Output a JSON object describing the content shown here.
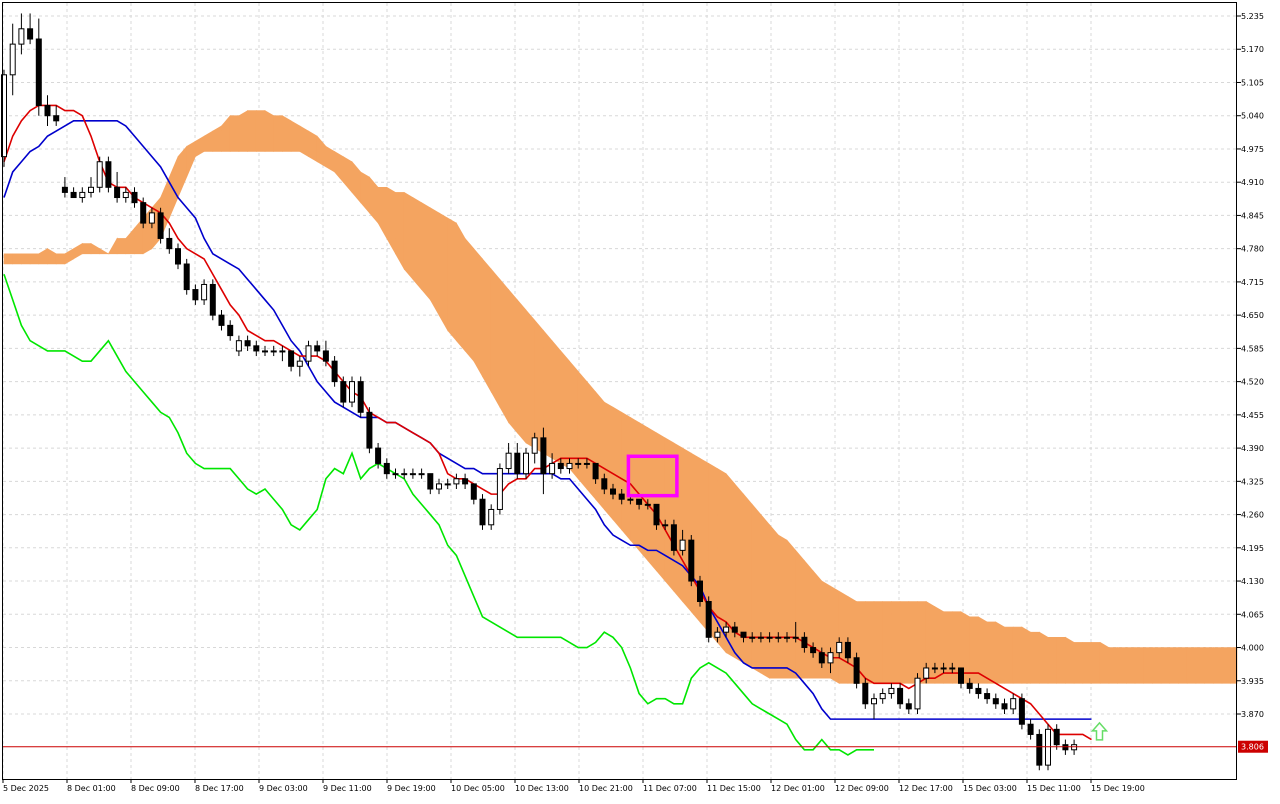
{
  "window": {
    "symbol_hidden": ""
  },
  "chart_data": {
    "type": "candlestick",
    "title": "",
    "ylim": [
      3.75,
      5.255
    ],
    "grid": true,
    "y_ticks": [
      "5.235",
      "5.170",
      "5.105",
      "5.040",
      "4.975",
      "4.910",
      "4.845",
      "4.780",
      "4.715",
      "4.650",
      "4.585",
      "4.520",
      "4.455",
      "4.390",
      "4.325",
      "4.260",
      "4.195",
      "4.130",
      "4.065",
      "4.000",
      "3.935",
      "3.870"
    ],
    "x_ticks": [
      "5 Dec 2025",
      "8 Dec 01:00",
      "8 Dec 09:00",
      "8 Dec 17:00",
      "9 Dec 03:00",
      "9 Dec 11:00",
      "9 Dec 19:00",
      "10 Dec 05:00",
      "10 Dec 13:00",
      "10 Dec 21:00",
      "11 Dec 07:00",
      "11 Dec 15:00",
      "12 Dec 01:00",
      "12 Dec 09:00",
      "12 Dec 17:00",
      "15 Dec 03:00",
      "15 Dec 11:00",
      "15 Dec 19:00"
    ],
    "current_price": "3.806",
    "colors": {
      "tenkan": "#dd0000",
      "kijun": "#0000cc",
      "chikou": "#00e600",
      "cloud_bull": "#f4a460",
      "cloud_bear": "#d8bfd8",
      "price_line": "#cc0000",
      "highlight": "#ff00ff",
      "arrow": "#66dd66",
      "candle": "#000000"
    },
    "candles": [
      [
        4.96,
        5.13,
        4.94,
        5.12
      ],
      [
        5.12,
        5.22,
        5.08,
        5.18
      ],
      [
        5.18,
        5.24,
        5.16,
        5.21
      ],
      [
        5.21,
        5.24,
        5.18,
        5.19
      ],
      [
        5.19,
        5.23,
        5.04,
        5.06
      ],
      [
        5.06,
        5.08,
        5.02,
        5.04
      ],
      [
        5.04,
        5.06,
        5.02,
        5.03
      ],
      [
        4.9,
        4.92,
        4.88,
        4.89
      ],
      [
        4.89,
        4.9,
        4.88,
        4.88
      ],
      [
        4.88,
        4.9,
        4.87,
        4.89
      ],
      [
        4.89,
        4.92,
        4.88,
        4.9
      ],
      [
        4.9,
        4.96,
        4.89,
        4.95
      ],
      [
        4.95,
        4.96,
        4.89,
        4.9
      ],
      [
        4.9,
        4.93,
        4.87,
        4.88
      ],
      [
        4.88,
        4.9,
        4.87,
        4.89
      ],
      [
        4.89,
        4.9,
        4.86,
        4.87
      ],
      [
        4.87,
        4.88,
        4.82,
        4.83
      ],
      [
        4.83,
        4.86,
        4.82,
        4.85
      ],
      [
        4.85,
        4.86,
        4.79,
        4.8
      ],
      [
        4.8,
        4.82,
        4.77,
        4.78
      ],
      [
        4.78,
        4.79,
        4.74,
        4.75
      ],
      [
        4.75,
        4.76,
        4.69,
        4.7
      ],
      [
        4.7,
        4.71,
        4.67,
        4.68
      ],
      [
        4.68,
        4.72,
        4.67,
        4.71
      ],
      [
        4.71,
        4.72,
        4.64,
        4.65
      ],
      [
        4.65,
        4.66,
        4.62,
        4.63
      ],
      [
        4.63,
        4.64,
        4.6,
        4.61
      ],
      [
        4.58,
        4.61,
        4.57,
        4.6
      ],
      [
        4.6,
        4.61,
        4.58,
        4.59
      ],
      [
        4.59,
        4.6,
        4.57,
        4.58
      ],
      [
        4.58,
        4.59,
        4.57,
        4.58
      ],
      [
        4.58,
        4.59,
        4.57,
        4.58
      ],
      [
        4.58,
        4.59,
        4.56,
        4.58
      ],
      [
        4.58,
        4.58,
        4.54,
        4.55
      ],
      [
        4.55,
        4.57,
        4.53,
        4.56
      ],
      [
        4.56,
        4.6,
        4.55,
        4.59
      ],
      [
        4.59,
        4.6,
        4.57,
        4.58
      ],
      [
        4.58,
        4.6,
        4.55,
        4.56
      ],
      [
        4.56,
        4.57,
        4.51,
        4.52
      ],
      [
        4.52,
        4.53,
        4.47,
        4.48
      ],
      [
        4.48,
        4.53,
        4.47,
        4.52
      ],
      [
        4.52,
        4.53,
        4.45,
        4.46
      ],
      [
        4.46,
        4.47,
        4.38,
        4.39
      ],
      [
        4.39,
        4.4,
        4.35,
        4.36
      ],
      [
        4.36,
        4.37,
        4.33,
        4.34
      ],
      [
        4.34,
        4.35,
        4.33,
        4.34
      ],
      [
        4.34,
        4.35,
        4.33,
        4.34
      ],
      [
        4.34,
        4.35,
        4.33,
        4.34
      ],
      [
        4.34,
        4.35,
        4.33,
        4.34
      ],
      [
        4.34,
        4.34,
        4.3,
        4.31
      ],
      [
        4.31,
        4.33,
        4.3,
        4.32
      ],
      [
        4.32,
        4.33,
        4.31,
        4.32
      ],
      [
        4.32,
        4.34,
        4.31,
        4.33
      ],
      [
        4.33,
        4.34,
        4.31,
        4.32
      ],
      [
        4.32,
        4.32,
        4.28,
        4.29
      ],
      [
        4.29,
        4.3,
        4.23,
        4.24
      ],
      [
        4.24,
        4.28,
        4.23,
        4.27
      ],
      [
        4.27,
        4.36,
        4.26,
        4.35
      ],
      [
        4.35,
        4.4,
        4.34,
        4.38
      ],
      [
        4.38,
        4.4,
        4.33,
        4.34
      ],
      [
        4.34,
        4.39,
        4.33,
        4.38
      ],
      [
        4.38,
        4.42,
        4.36,
        4.41
      ],
      [
        4.41,
        4.43,
        4.3,
        4.34
      ],
      [
        4.34,
        4.38,
        4.33,
        4.36
      ],
      [
        4.36,
        4.37,
        4.34,
        4.35
      ],
      [
        4.35,
        4.37,
        4.34,
        4.36
      ],
      [
        4.36,
        4.37,
        4.35,
        4.36
      ],
      [
        4.36,
        4.37,
        4.35,
        4.36
      ],
      [
        4.36,
        4.36,
        4.32,
        4.33
      ],
      [
        4.33,
        4.34,
        4.3,
        4.31
      ],
      [
        4.31,
        4.32,
        4.29,
        4.3
      ],
      [
        4.3,
        4.31,
        4.28,
        4.29
      ],
      [
        4.29,
        4.3,
        4.28,
        4.29
      ],
      [
        4.29,
        4.29,
        4.27,
        4.28
      ],
      [
        4.28,
        4.29,
        4.27,
        4.28
      ],
      [
        4.28,
        4.28,
        4.23,
        4.24
      ],
      [
        4.24,
        4.25,
        4.23,
        4.24
      ],
      [
        4.24,
        4.25,
        4.18,
        4.19
      ],
      [
        4.19,
        4.23,
        4.18,
        4.21
      ],
      [
        4.21,
        4.22,
        4.12,
        4.13
      ],
      [
        4.13,
        4.14,
        4.08,
        4.09
      ],
      [
        4.09,
        4.1,
        4.01,
        4.02
      ],
      [
        4.02,
        4.04,
        4.01,
        4.03
      ],
      [
        4.03,
        4.05,
        4.02,
        4.04
      ],
      [
        4.04,
        4.05,
        4.02,
        4.03
      ],
      [
        4.03,
        4.03,
        4.01,
        4.02
      ],
      [
        4.02,
        4.03,
        4.01,
        4.02
      ],
      [
        4.02,
        4.03,
        4.01,
        4.02
      ],
      [
        4.02,
        4.03,
        4.01,
        4.02
      ],
      [
        4.02,
        4.03,
        4.01,
        4.02
      ],
      [
        4.02,
        4.03,
        4.01,
        4.02
      ],
      [
        4.02,
        4.05,
        4.01,
        4.02
      ],
      [
        4.02,
        4.03,
        3.99,
        4.0
      ],
      [
        4.0,
        4.01,
        3.98,
        3.99
      ],
      [
        3.99,
        4.0,
        3.96,
        3.97
      ],
      [
        3.97,
        4.0,
        3.95,
        3.99
      ],
      [
        3.99,
        4.02,
        3.98,
        4.01
      ],
      [
        4.01,
        4.02,
        3.97,
        3.98
      ],
      [
        3.98,
        3.99,
        3.92,
        3.93
      ],
      [
        3.93,
        3.94,
        3.88,
        3.89
      ],
      [
        3.89,
        3.91,
        3.86,
        3.9
      ],
      [
        3.9,
        3.92,
        3.89,
        3.91
      ],
      [
        3.91,
        3.93,
        3.9,
        3.92
      ],
      [
        3.92,
        3.93,
        3.88,
        3.89
      ],
      [
        3.89,
        3.9,
        3.87,
        3.88
      ],
      [
        3.88,
        3.95,
        3.87,
        3.94
      ],
      [
        3.94,
        3.97,
        3.93,
        3.96
      ],
      [
        3.96,
        3.97,
        3.95,
        3.96
      ],
      [
        3.96,
        3.97,
        3.95,
        3.96
      ],
      [
        3.96,
        3.97,
        3.95,
        3.96
      ],
      [
        3.96,
        3.96,
        3.92,
        3.93
      ],
      [
        3.93,
        3.94,
        3.91,
        3.92
      ],
      [
        3.92,
        3.93,
        3.9,
        3.91
      ],
      [
        3.91,
        3.92,
        3.89,
        3.9
      ],
      [
        3.9,
        3.91,
        3.88,
        3.89
      ],
      [
        3.89,
        3.9,
        3.87,
        3.88
      ],
      [
        3.88,
        3.91,
        3.87,
        3.9
      ],
      [
        3.9,
        3.91,
        3.84,
        3.85
      ],
      [
        3.85,
        3.86,
        3.82,
        3.83
      ],
      [
        3.83,
        3.84,
        3.76,
        3.77
      ],
      [
        3.77,
        3.85,
        3.76,
        3.84
      ],
      [
        3.84,
        3.85,
        3.8,
        3.81
      ],
      [
        3.81,
        3.82,
        3.79,
        3.8
      ],
      [
        3.8,
        3.82,
        3.79,
        3.81
      ]
    ],
    "tenkan": [
      4.95,
      5.0,
      5.03,
      5.05,
      5.06,
      5.06,
      5.06,
      5.05,
      5.05,
      5.04,
      5.0,
      4.95,
      4.91,
      4.9,
      4.9,
      4.88,
      4.87,
      4.86,
      4.85,
      4.83,
      4.8,
      4.78,
      4.77,
      4.76,
      4.73,
      4.7,
      4.67,
      4.65,
      4.62,
      4.61,
      4.6,
      4.6,
      4.59,
      4.58,
      4.57,
      4.57,
      4.57,
      4.56,
      4.54,
      4.52,
      4.5,
      4.49,
      4.46,
      4.45,
      4.44,
      4.44,
      4.43,
      4.42,
      4.41,
      4.4,
      4.38,
      4.34,
      4.33,
      4.33,
      4.32,
      4.31,
      4.3,
      4.3,
      4.32,
      4.33,
      4.33,
      4.35,
      4.35,
      4.36,
      4.37,
      4.37,
      4.37,
      4.37,
      4.36,
      4.35,
      4.34,
      4.33,
      4.32,
      4.3,
      4.28,
      4.26,
      4.23,
      4.2,
      4.17,
      4.14,
      4.11,
      4.08,
      4.06,
      4.05,
      4.03,
      4.02,
      4.02,
      4.02,
      4.02,
      4.02,
      4.02,
      4.02,
      4.01,
      4.0,
      3.99,
      3.98,
      3.98,
      3.97,
      3.96,
      3.94,
      3.93,
      3.93,
      3.93,
      3.93,
      3.92,
      3.93,
      3.94,
      3.94,
      3.95,
      3.95,
      3.95,
      3.95,
      3.95,
      3.94,
      3.93,
      3.92,
      3.91,
      3.9,
      3.89,
      3.87,
      3.85,
      3.83,
      3.83,
      3.83,
      3.83,
      3.82
    ],
    "kijun": [
      4.88,
      4.93,
      4.95,
      4.97,
      4.98,
      5.0,
      5.01,
      5.02,
      5.03,
      5.03,
      5.03,
      5.03,
      5.03,
      5.03,
      5.02,
      5.0,
      4.98,
      4.96,
      4.94,
      4.91,
      4.88,
      4.86,
      4.84,
      4.8,
      4.77,
      4.76,
      4.75,
      4.74,
      4.72,
      4.7,
      4.68,
      4.66,
      4.63,
      4.6,
      4.58,
      4.55,
      4.52,
      4.5,
      4.48,
      4.47,
      4.46,
      4.45,
      4.45,
      4.45,
      4.44,
      4.44,
      4.43,
      4.42,
      4.41,
      4.4,
      4.38,
      4.37,
      4.36,
      4.35,
      4.35,
      4.34,
      4.34,
      4.34,
      4.34,
      4.34,
      4.34,
      4.34,
      4.34,
      4.34,
      4.33,
      4.33,
      4.31,
      4.29,
      4.27,
      4.24,
      4.22,
      4.21,
      4.2,
      4.2,
      4.19,
      4.19,
      4.18,
      4.17,
      4.16,
      4.14,
      4.12,
      4.08,
      4.05,
      4.02,
      3.99,
      3.97,
      3.96,
      3.96,
      3.96,
      3.96,
      3.96,
      3.95,
      3.93,
      3.91,
      3.88,
      3.86,
      3.86,
      3.86,
      3.86,
      3.86,
      3.86,
      3.86,
      3.86,
      3.86,
      3.86,
      3.86,
      3.86,
      3.86,
      3.86,
      3.86,
      3.86,
      3.86,
      3.86,
      3.86,
      3.86,
      3.86,
      3.86,
      3.86,
      3.86,
      3.86,
      3.86,
      3.86,
      3.86,
      3.86,
      3.86,
      3.86
    ],
    "chikou": [
      4.73,
      4.68,
      4.63,
      4.6,
      4.59,
      4.58,
      4.58,
      4.58,
      4.57,
      4.56,
      4.56,
      4.58,
      4.6,
      4.57,
      4.54,
      4.52,
      4.5,
      4.48,
      4.46,
      4.45,
      4.42,
      4.38,
      4.36,
      4.35,
      4.35,
      4.35,
      4.35,
      4.33,
      4.31,
      4.3,
      4.31,
      4.29,
      4.27,
      4.24,
      4.23,
      4.25,
      4.27,
      4.33,
      4.35,
      4.34,
      4.38,
      4.33,
      4.35,
      4.36,
      4.35,
      4.34,
      4.33,
      4.3,
      4.28,
      4.26,
      4.24,
      4.2,
      4.18,
      4.14,
      4.1,
      4.06,
      4.05,
      4.04,
      4.03,
      4.02,
      4.02,
      4.02,
      4.02,
      4.02,
      4.02,
      4.01,
      4.0,
      4.0,
      4.01,
      4.03,
      4.02,
      4.0,
      3.96,
      3.91,
      3.89,
      3.9,
      3.9,
      3.89,
      3.89,
      3.94,
      3.96,
      3.97,
      3.96,
      3.95,
      3.93,
      3.91,
      3.89,
      3.88,
      3.87,
      3.86,
      3.85,
      3.82,
      3.8,
      3.8,
      3.82,
      3.8,
      3.8,
      3.79,
      3.8,
      3.8,
      3.8
    ],
    "span_a": [
      4.77,
      4.77,
      4.77,
      4.77,
      4.77,
      4.78,
      4.77,
      4.77,
      4.78,
      4.79,
      4.79,
      4.78,
      4.77,
      4.8,
      4.8,
      4.82,
      4.84,
      4.86,
      4.88,
      4.92,
      4.96,
      4.98,
      4.99,
      5.0,
      5.01,
      5.02,
      5.04,
      5.04,
      5.05,
      5.05,
      5.05,
      5.04,
      5.04,
      5.03,
      5.02,
      5.01,
      5.0,
      4.98,
      4.97,
      4.96,
      4.95,
      4.93,
      4.92,
      4.9,
      4.9,
      4.89,
      4.89,
      4.88,
      4.87,
      4.86,
      4.85,
      4.84,
      4.83,
      4.8,
      4.78,
      4.76,
      4.74,
      4.72,
      4.7,
      4.68,
      4.66,
      4.64,
      4.62,
      4.6,
      4.58,
      4.56,
      4.54,
      4.52,
      4.5,
      4.48,
      4.47,
      4.46,
      4.45,
      4.44,
      4.43,
      4.42,
      4.41,
      4.4,
      4.39,
      4.38,
      4.37,
      4.36,
      4.35,
      4.34,
      4.32,
      4.3,
      4.28,
      4.26,
      4.24,
      4.22,
      4.21,
      4.19,
      4.17,
      4.15,
      4.13,
      4.12,
      4.11,
      4.1,
      4.09,
      4.09,
      4.09,
      4.09,
      4.09,
      4.09,
      4.09,
      4.09,
      4.09,
      4.08,
      4.07,
      4.07,
      4.07,
      4.06,
      4.06,
      4.05,
      4.05,
      4.04,
      4.04,
      4.04,
      4.03,
      4.03,
      4.02,
      4.02,
      4.02,
      4.01,
      4.01,
      4.01,
      4.01,
      4.0,
      4.0,
      4.0,
      4.0,
      4.0,
      4.0,
      4.0,
      4.0,
      4.0,
      4.0,
      4.0,
      4.0,
      4.0,
      4.0,
      4.0,
      4.0,
      4.0,
      4.0,
      4.0,
      4.0,
      4.0,
      4.0,
      4.0,
      4.0,
      4.0,
      4.0,
      4.0
    ],
    "span_b": [
      4.75,
      4.75,
      4.75,
      4.75,
      4.75,
      4.75,
      4.75,
      4.75,
      4.76,
      4.77,
      4.77,
      4.77,
      4.77,
      4.77,
      4.77,
      4.77,
      4.77,
      4.78,
      4.8,
      4.84,
      4.88,
      4.92,
      4.96,
      4.97,
      4.97,
      4.97,
      4.97,
      4.97,
      4.97,
      4.97,
      4.97,
      4.97,
      4.97,
      4.97,
      4.97,
      4.96,
      4.95,
      4.94,
      4.93,
      4.91,
      4.89,
      4.87,
      4.85,
      4.83,
      4.8,
      4.77,
      4.74,
      4.72,
      4.7,
      4.68,
      4.65,
      4.62,
      4.6,
      4.58,
      4.56,
      4.53,
      4.5,
      4.47,
      4.44,
      4.42,
      4.4,
      4.39,
      4.38,
      4.37,
      4.36,
      4.35,
      4.33,
      4.31,
      4.29,
      4.27,
      4.25,
      4.23,
      4.21,
      4.19,
      4.17,
      4.15,
      4.13,
      4.11,
      4.09,
      4.07,
      4.05,
      4.03,
      4.01,
      3.99,
      3.98,
      3.97,
      3.96,
      3.95,
      3.94,
      3.94,
      3.94,
      3.94,
      3.94,
      3.94,
      3.94,
      3.94,
      3.93,
      3.93,
      3.93,
      3.93,
      3.93,
      3.93,
      3.93,
      3.93,
      3.93,
      3.93,
      3.93,
      3.93,
      3.93,
      3.93,
      3.93,
      3.93,
      3.93,
      3.93,
      3.93,
      3.93,
      3.93,
      3.93,
      3.93,
      3.93,
      3.93,
      3.93,
      3.93,
      3.93,
      3.93,
      3.93,
      3.93,
      3.93,
      3.93,
      3.93,
      3.93,
      3.93,
      3.93,
      3.93,
      3.93,
      3.93,
      3.93,
      3.93,
      3.93,
      3.93,
      3.93,
      3.93,
      3.93,
      3.93,
      3.93,
      3.93,
      3.93,
      3.93,
      3.93,
      3.93,
      3.93,
      3.93,
      3.93,
      3.93
    ]
  }
}
